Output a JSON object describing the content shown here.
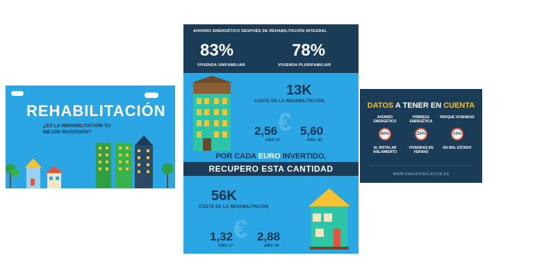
{
  "left_card": {
    "title": "REHABILITACIÓN",
    "subtitle": "¿ES LA REHABILITACIÓN TU MEJOR INVERSIÓN?"
  },
  "middle_card": {
    "header": "AHORRO ENERGÉTICO DESPUÉS DE REHABILITACIÓN INTEGRAL",
    "stats": [
      {
        "value": "83%",
        "label": "VIVIENDA UNIFAMILIAR"
      },
      {
        "value": "78%",
        "label": "VIVIENDA PLURIFAMILIAR"
      }
    ],
    "block1": {
      "cost": "13K",
      "cost_label": "COSTE DE LA REHABILITACIÓN",
      "v1": "2,56",
      "v1_label": "AÑO 17",
      "v2": "5,60",
      "v2_label": "AÑO 30"
    },
    "banner_line1_a": "POR  CADA ",
    "banner_line1_b": "EURO",
    "banner_line1_c": " INVERTIDO,",
    "banner_line2": "RECUPERO ESTA CANTIDAD",
    "block2": {
      "cost": "56K",
      "cost_label": "COSTE DE LA REHABILITACIÓN",
      "v1": "1,32",
      "v1_label": "AÑO 17",
      "v2": "2,88",
      "v2_label": "AÑO 30"
    },
    "euro_symbol": "€"
  },
  "right_card": {
    "title_a": "DATOS",
    "title_b": " A TENER EN ",
    "title_c": "CUENTA",
    "items": [
      {
        "top": "AHORRO ENERGÉTICO",
        "value": "80%",
        "bottom": "AL INSTALAR AISLAMIENTO"
      },
      {
        "top": "POBREZA ENERGÉTICA",
        "value": "25%",
        "bottom": "VIVIENDAS EN VERANO"
      },
      {
        "top": "PARQUE VIVIENDAS",
        "value": "15%",
        "bottom": "EN MAL ESTADO"
      }
    ],
    "url": "WWW.KNAUFINSULATION.ES"
  },
  "colors": {
    "sky_blue": "#29a6e3",
    "navy": "#1a3c57",
    "yellow": "#f7c233",
    "ring_red": "#e7533a"
  }
}
